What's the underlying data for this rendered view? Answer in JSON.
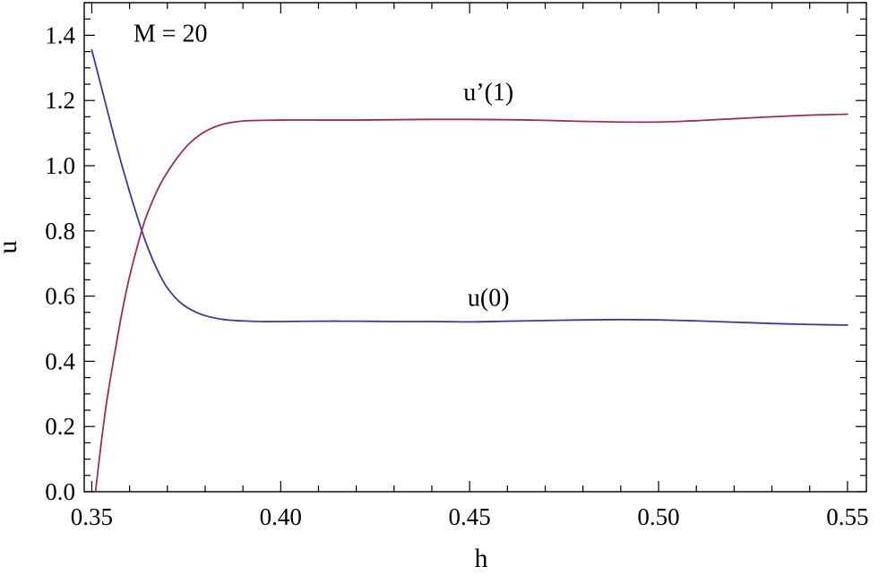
{
  "chart_data": {
    "type": "line",
    "xlabel": "h",
    "ylabel": "u",
    "xlim": [
      0.348,
      0.555
    ],
    "ylim": [
      0.0,
      1.5
    ],
    "xticks": [
      0.35,
      0.4,
      0.45,
      0.5,
      0.55
    ],
    "xtick_labels": [
      "0.35",
      "0.40",
      "0.45",
      "0.50",
      "0.55"
    ],
    "yticks": [
      0.0,
      0.2,
      0.4,
      0.6,
      0.8,
      1.0,
      1.2,
      1.4
    ],
    "ytick_labels": [
      "0.0",
      "0.2",
      "0.4",
      "0.6",
      "0.8",
      "1.0",
      "1.2",
      "1.4"
    ],
    "grid": false,
    "annotations": [
      {
        "text": "M = 20",
        "x": 0.361,
        "y": 1.38
      },
      {
        "text": "u’(1)",
        "x": 0.455,
        "y": 1.2
      },
      {
        "text": "u(0)",
        "x": 0.455,
        "y": 0.57
      }
    ],
    "series": [
      {
        "name": "u(0)",
        "color": "#3b3b96",
        "x": [
          0.35,
          0.352,
          0.354,
          0.356,
          0.358,
          0.36,
          0.362,
          0.364,
          0.366,
          0.368,
          0.37,
          0.373,
          0.376,
          0.38,
          0.385,
          0.39,
          0.395,
          0.4,
          0.41,
          0.42,
          0.43,
          0.44,
          0.45,
          0.46,
          0.47,
          0.48,
          0.49,
          0.5,
          0.51,
          0.52,
          0.53,
          0.54,
          0.55
        ],
        "y": [
          1.355,
          1.265,
          1.175,
          1.085,
          1.0,
          0.92,
          0.845,
          0.775,
          0.715,
          0.665,
          0.625,
          0.585,
          0.56,
          0.54,
          0.528,
          0.524,
          0.522,
          0.522,
          0.523,
          0.523,
          0.522,
          0.522,
          0.521,
          0.523,
          0.525,
          0.527,
          0.528,
          0.527,
          0.524,
          0.52,
          0.516,
          0.513,
          0.511
        ]
      },
      {
        "name": "u’(1)",
        "color": "#9b2d66",
        "x": [
          0.351,
          0.3525,
          0.354,
          0.356,
          0.358,
          0.36,
          0.362,
          0.364,
          0.366,
          0.368,
          0.37,
          0.373,
          0.376,
          0.38,
          0.385,
          0.39,
          0.395,
          0.4,
          0.41,
          0.42,
          0.43,
          0.44,
          0.45,
          0.46,
          0.47,
          0.48,
          0.49,
          0.5,
          0.51,
          0.52,
          0.53,
          0.54,
          0.55
        ],
        "y": [
          0.0,
          0.15,
          0.28,
          0.42,
          0.55,
          0.66,
          0.75,
          0.83,
          0.89,
          0.94,
          0.98,
          1.03,
          1.07,
          1.105,
          1.128,
          1.137,
          1.139,
          1.14,
          1.14,
          1.14,
          1.141,
          1.142,
          1.142,
          1.141,
          1.139,
          1.136,
          1.134,
          1.134,
          1.138,
          1.144,
          1.15,
          1.155,
          1.158
        ]
      }
    ]
  }
}
